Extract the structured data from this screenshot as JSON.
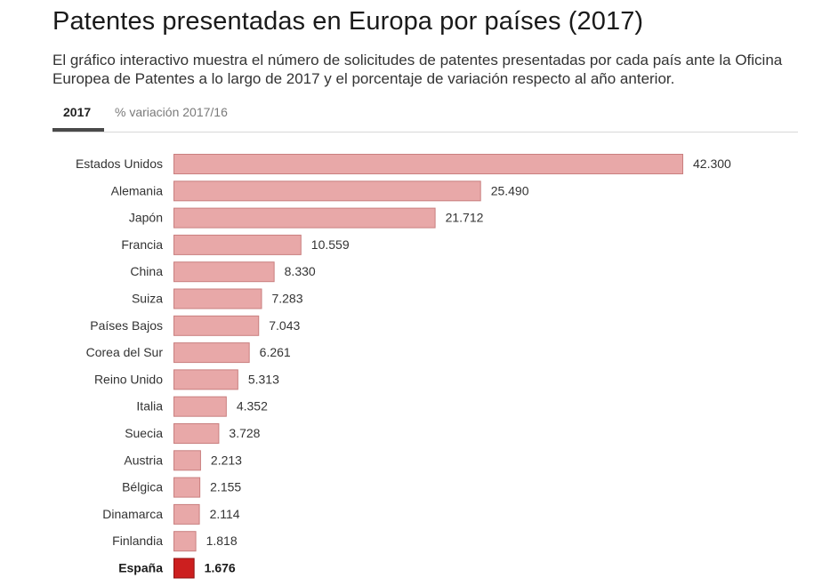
{
  "title": "Patentes presentadas en Europa por países (2017)",
  "subtitle": "El gráfico interactivo muestra el número de solicitudes de patentes presentadas por cada país ante la Oficina Europea de Patentes a lo largo de 2017 y el porcentaje de variación respecto al año anterior.",
  "tabs": [
    {
      "label": "2017",
      "active": true
    },
    {
      "label": "% variación 2017/16",
      "active": false
    }
  ],
  "colors": {
    "bar": "#e8a8a8",
    "bar_stroke": "#c97f7f",
    "highlight": "#cc1f1f",
    "highlight_stroke": "#8f1010"
  },
  "chart_data": {
    "type": "bar",
    "orientation": "horizontal",
    "categories": [
      "Estados Unidos",
      "Alemania",
      "Japón",
      "Francia",
      "China",
      "Suiza",
      "Países Bajos",
      "Corea del Sur",
      "Reino Unido",
      "Italia",
      "Suecia",
      "Austria",
      "Bélgica",
      "Dinamarca",
      "Finlandia",
      "España"
    ],
    "values": [
      42300,
      25490,
      21712,
      10559,
      8330,
      7283,
      7043,
      6261,
      5313,
      4352,
      3728,
      2213,
      2155,
      2114,
      1818,
      1676
    ],
    "labels": [
      "42.300",
      "25.490",
      "21.712",
      "10.559",
      "8.330",
      "7.283",
      "7.043",
      "6.261",
      "5.313",
      "4.352",
      "3.728",
      "2.213",
      "2.155",
      "2.114",
      "1.818",
      "1.676"
    ],
    "highlight": "España",
    "xlim": [
      0,
      42300
    ],
    "grid": false
  }
}
